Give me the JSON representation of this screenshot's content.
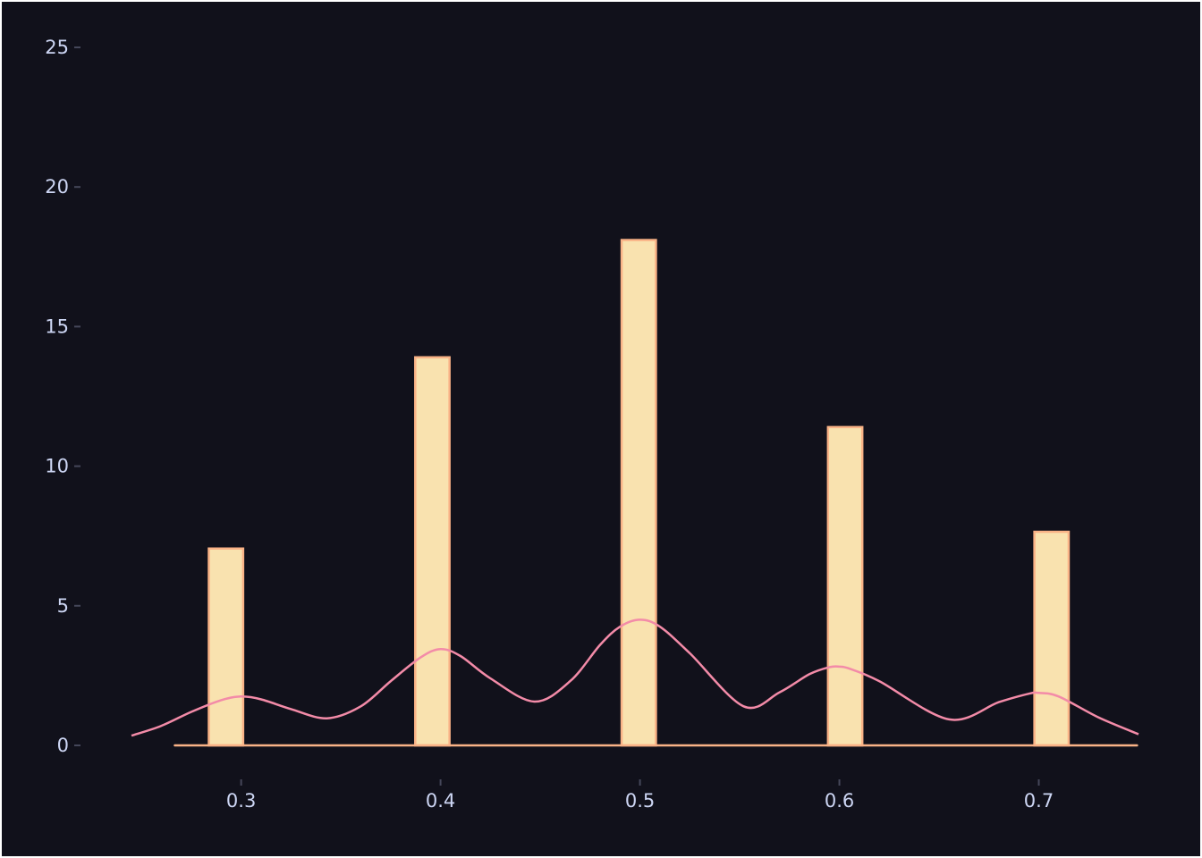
{
  "colors": {
    "background": "#11111b",
    "frame": "#ffffff",
    "text": "#cdd6f4",
    "tick": "#45475a",
    "bar_fill": "#f9e2af",
    "bar_edge": "#fab387",
    "kde_line": "#f38ba8"
  },
  "chart_data": {
    "type": "bar",
    "title": "",
    "xlabel": "",
    "ylabel": "",
    "grid": false,
    "xlim": [
      0.245,
      0.75
    ],
    "ylim": [
      -1.2,
      26.0
    ],
    "x_ticks": [
      0.3,
      0.4,
      0.5,
      0.6,
      0.7
    ],
    "x_tick_labels": [
      "0.3",
      "0.4",
      "0.5",
      "0.6",
      "0.7"
    ],
    "y_ticks": [
      0,
      5,
      10,
      15,
      20,
      25
    ],
    "y_tick_labels": [
      "0",
      "5",
      "10",
      "15",
      "20",
      "25"
    ],
    "histogram": {
      "bin_edges": [
        0.2665,
        0.2838,
        0.301,
        0.3183,
        0.3355,
        0.3528,
        0.37,
        0.3873,
        0.4045,
        0.4218,
        0.439,
        0.4563,
        0.4735,
        0.4908,
        0.508,
        0.5253,
        0.5425,
        0.5598,
        0.577,
        0.5943,
        0.6115,
        0.6288,
        0.646,
        0.6633,
        0.6805,
        0.6978,
        0.715,
        0.7323,
        0.7495
      ],
      "values": [
        0,
        7.05,
        0,
        0,
        0,
        0,
        0,
        13.9,
        0,
        0,
        0,
        0,
        0,
        18.1,
        0,
        0,
        0,
        0,
        0,
        11.4,
        0,
        0,
        0,
        0,
        0,
        7.65,
        0,
        0
      ]
    },
    "kde": {
      "x": [
        0.245,
        0.26,
        0.275,
        0.29,
        0.3,
        0.31,
        0.325,
        0.343,
        0.36,
        0.375,
        0.39,
        0.4,
        0.41,
        0.425,
        0.447,
        0.465,
        0.48,
        0.49,
        0.5,
        0.51,
        0.525,
        0.552,
        0.57,
        0.585,
        0.595,
        0.6,
        0.605,
        0.62,
        0.655,
        0.68,
        0.695,
        0.7,
        0.71,
        0.73,
        0.75
      ],
      "y": [
        0.35,
        0.7,
        1.2,
        1.62,
        1.75,
        1.65,
        1.3,
        0.97,
        1.4,
        2.3,
        3.15,
        3.45,
        3.2,
        2.4,
        1.57,
        2.3,
        3.6,
        4.25,
        4.5,
        4.25,
        3.3,
        1.4,
        1.9,
        2.55,
        2.8,
        2.82,
        2.75,
        2.3,
        0.93,
        1.55,
        1.85,
        1.88,
        1.75,
        1.0,
        0.4
      ]
    }
  }
}
